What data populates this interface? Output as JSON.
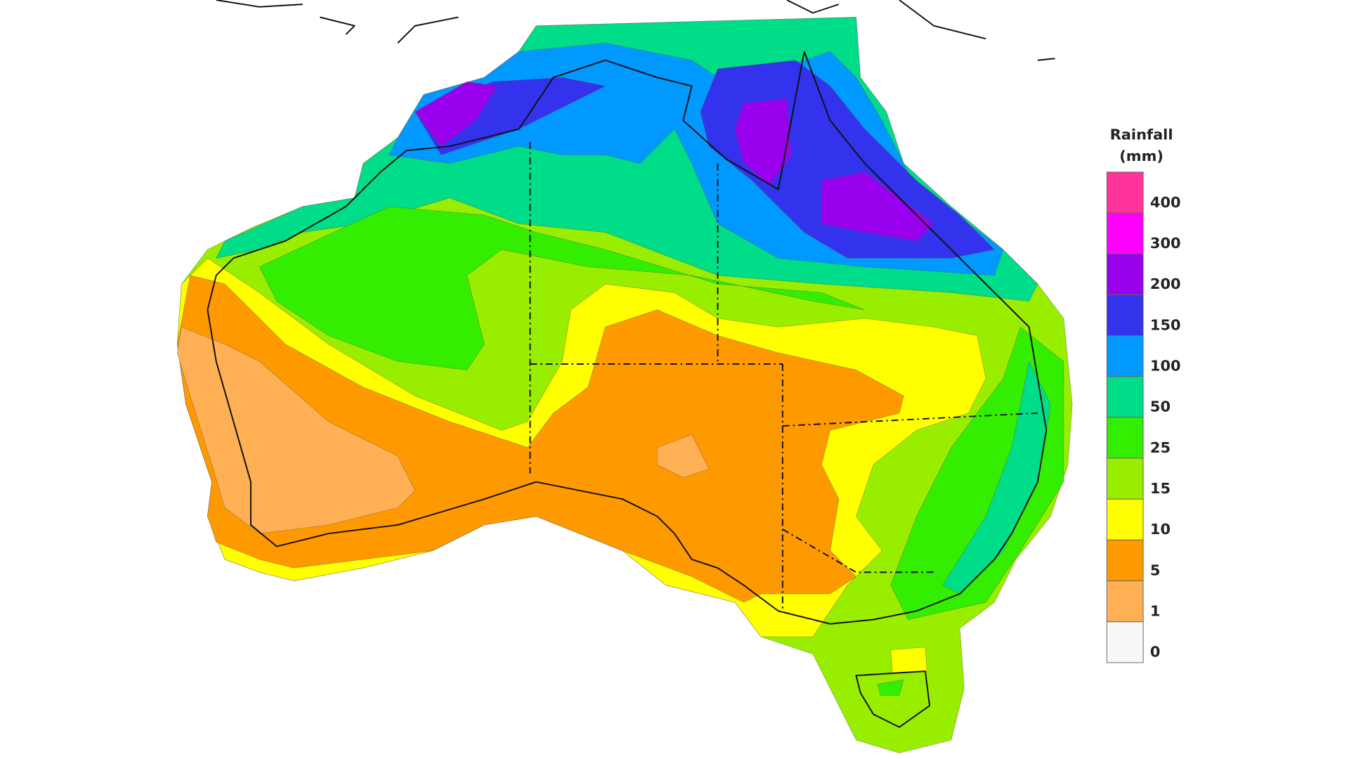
{
  "legend": {
    "title": "Rainfall",
    "unit": "(mm)",
    "items": [
      {
        "label": "400",
        "color": "#ff3399"
      },
      {
        "label": "300",
        "color": "#ff00ff"
      },
      {
        "label": "200",
        "color": "#9900ee"
      },
      {
        "label": "150",
        "color": "#3333ee"
      },
      {
        "label": "100",
        "color": "#0099ff"
      },
      {
        "label": "50",
        "color": "#00dd88"
      },
      {
        "label": "25",
        "color": "#33ee00"
      },
      {
        "label": "15",
        "color": "#99ee00"
      },
      {
        "label": "10",
        "color": "#ffff00"
      },
      {
        "label": "5",
        "color": "#ff9900"
      },
      {
        "label": "1",
        "color": "#ffb055"
      },
      {
        "label": "0",
        "color": "#f8f8f8"
      }
    ]
  }
}
